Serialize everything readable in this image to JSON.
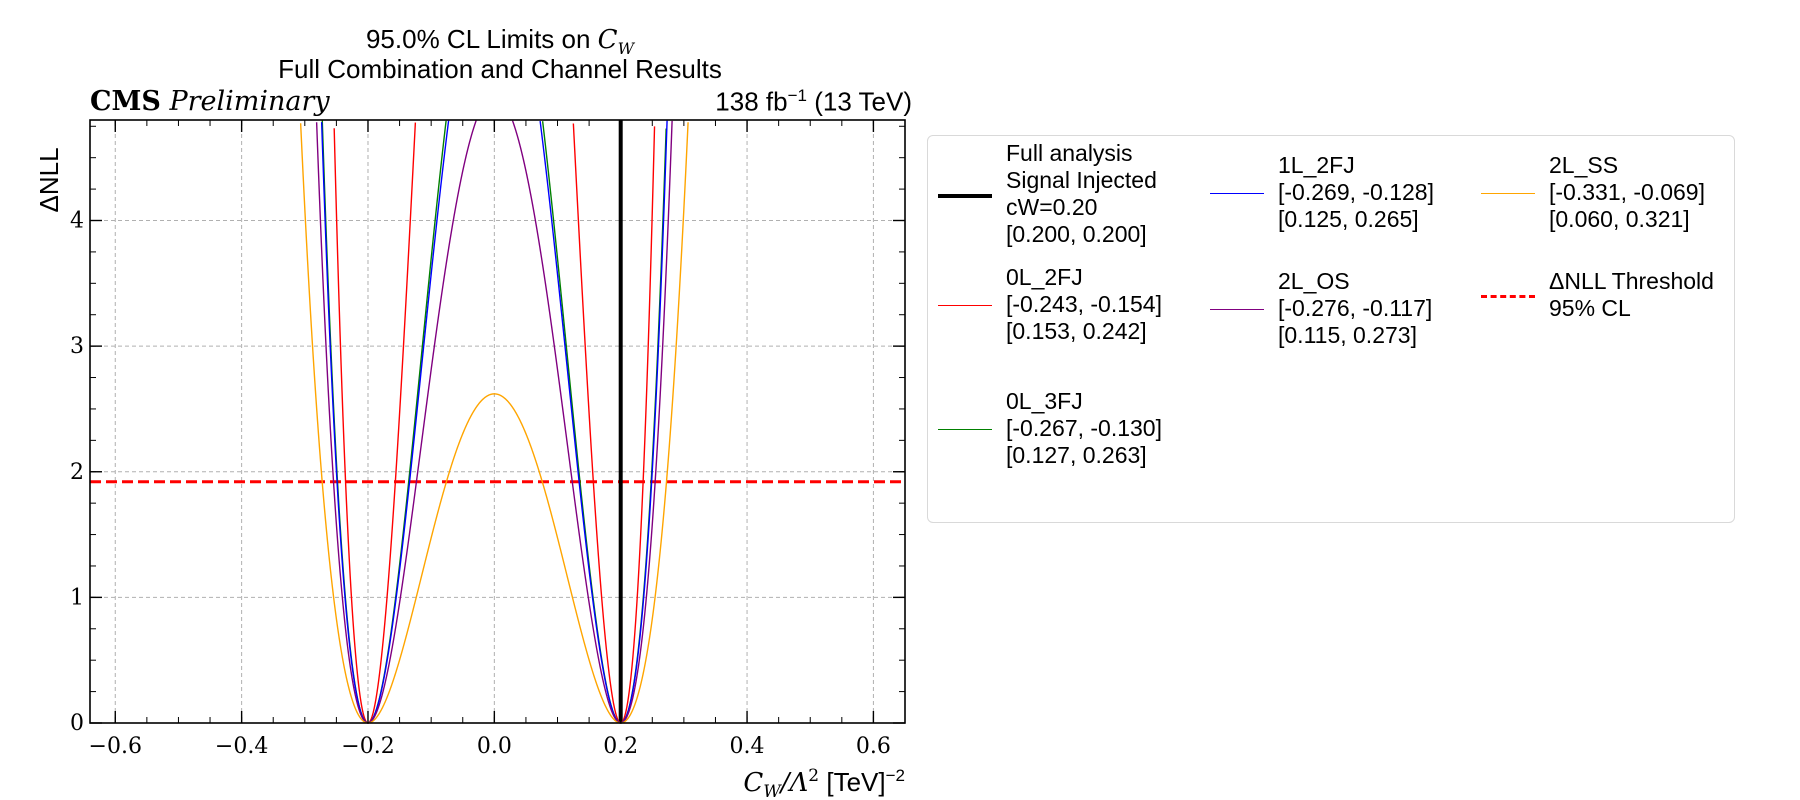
{
  "chart_data": {
    "type": "line",
    "title_prefix": "95.0% CL Limits on ",
    "title_symbol": "C",
    "title_symbol_sub": "W",
    "subtitle": "Full Combination and Channel Results",
    "experiment": "CMS",
    "status": "Preliminary",
    "lumi": "138 fb",
    "lumi_exp": "−1",
    "energy": "(13 TeV)",
    "xlabel_symbol": "C",
    "xlabel_sub": "W",
    "xlabel_mid": "/Λ",
    "xlabel_sup": "2",
    "xlabel_unit": "[TeV]",
    "xlabel_unit_sup": "−2",
    "ylabel": "ΔNLL",
    "xlim": [
      -0.64,
      0.65
    ],
    "ylim": [
      0,
      4.8
    ],
    "xticks": [
      -0.6,
      -0.4,
      -0.2,
      0.0,
      0.2,
      0.4,
      0.6
    ],
    "xtick_labels": [
      "−0.6",
      "−0.4",
      "−0.2",
      "0.0",
      "0.2",
      "0.4",
      "0.6"
    ],
    "yticks": [
      0,
      1,
      2,
      3,
      4
    ],
    "ytick_labels": [
      "0",
      "1",
      "2",
      "3",
      "4"
    ],
    "grid": true,
    "legend_position": "right",
    "threshold": {
      "y": 1.92,
      "color": "#ff0000",
      "label_lines": [
        "ΔNLL Threshold",
        "95% CL"
      ]
    },
    "series": [
      {
        "name": "Full analysis",
        "label_lines": [
          "Full analysis",
          "Signal Injected",
          "cW=0.20",
          "[0.200, 0.200]"
        ],
        "color": "#000000",
        "kind": "vertical",
        "x": 0.2,
        "width": 4
      },
      {
        "name": "0L_2FJ",
        "label_lines": [
          "0L_2FJ",
          "[-0.243, -0.154]",
          "[0.153, 0.242]"
        ],
        "color": "#ff0000",
        "kind": "double-well",
        "center": 0.2,
        "y_at_zero": 12.87,
        "width": 1.4
      },
      {
        "name": "0L_3FJ",
        "label_lines": [
          "0L_3FJ",
          "[-0.267, -0.130]",
          "[0.127, 0.263]"
        ],
        "color": "#008000",
        "kind": "double-well",
        "center": 0.2,
        "y_at_zero": 6.57,
        "width": 1.4
      },
      {
        "name": "1L_2FJ",
        "label_lines": [
          "1L_2FJ",
          "[-0.269, -0.128]",
          "[0.125, 0.265]"
        ],
        "color": "#0000ff",
        "kind": "double-well",
        "center": 0.2,
        "y_at_zero": 6.35,
        "width": 1.4
      },
      {
        "name": "2L_OS",
        "label_lines": [
          "2L_OS",
          "[-0.276, -0.117]",
          "[0.115, 0.273]"
        ],
        "color": "#800080",
        "kind": "double-well",
        "center": 0.2,
        "y_at_zero": 5.0,
        "width": 1.4
      },
      {
        "name": "2L_SS",
        "label_lines": [
          "2L_SS",
          "[-0.331, -0.069]",
          "[0.060, 0.321]"
        ],
        "color": "#ffa500",
        "kind": "double-well",
        "center": 0.2,
        "y_at_zero": 2.62,
        "width": 1.4
      }
    ]
  }
}
